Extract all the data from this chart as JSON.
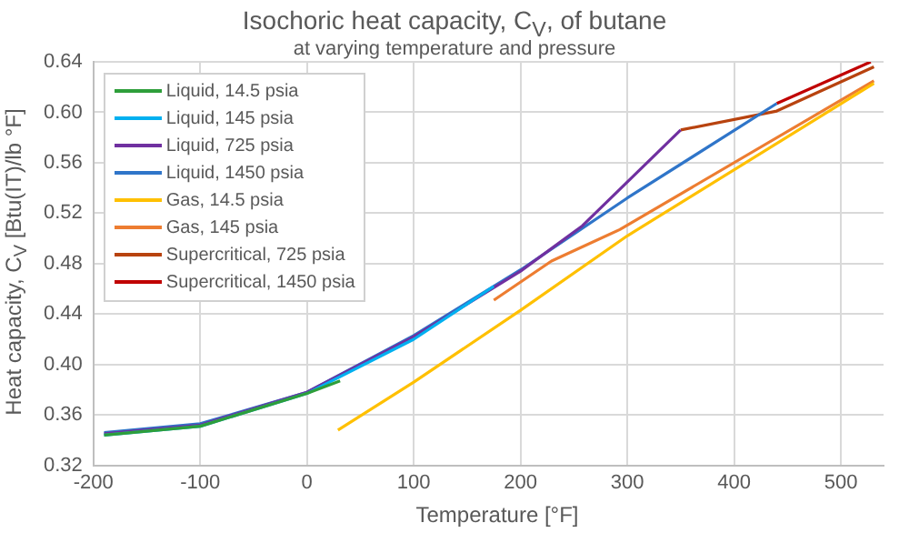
{
  "chart_data": {
    "type": "line",
    "title": "Isochoric heat capacity, C$_{V}$, of butane",
    "subtitle": "at varying temperature and pressure",
    "xlabel": "Temperature  [°F]",
    "ylabel": "Heat capacity, C$_{V}$  [Btu(IT)/lb °F]",
    "xlim": [
      -200,
      540
    ],
    "xticks": [
      -200,
      -100,
      0,
      100,
      200,
      300,
      400,
      500
    ],
    "ylim": [
      0.32,
      0.64
    ],
    "yticks": [
      0.32,
      0.36,
      {
        "value": 0.4,
        "label": "0.40"
      },
      0.44,
      0.48,
      0.52,
      0.56,
      {
        "value": 0.6,
        "label": "0.60"
      },
      0.64
    ],
    "grid": true,
    "legend": "top left",
    "marker": "none",
    "series": [
      {
        "name": "Liquid, 14.5 psia",
        "color": "#2e9e3a",
        "x": [
          -190,
          -100,
          0,
          31
        ],
        "values": [
          0.344,
          0.351,
          0.377,
          0.387
        ]
      },
      {
        "name": "Liquid, 145 psia",
        "color": "#00b0f0",
        "x": [
          -190,
          -100,
          0,
          100,
          175
        ],
        "values": [
          0.344,
          0.351,
          0.377,
          0.42,
          0.462
        ]
      },
      {
        "name": "Liquid, 725 psia",
        "color": "#7030a0",
        "x": [
          -190,
          -100,
          0,
          100,
          200,
          258,
          350
        ],
        "values": [
          0.345,
          0.352,
          0.378,
          0.422,
          0.474,
          0.51,
          0.586
        ]
      },
      {
        "name": "Liquid, 1450 psia",
        "color": "#2f75c9",
        "x": [
          -190,
          -100,
          0,
          100,
          200,
          300,
          440
        ],
        "values": [
          0.346,
          0.353,
          0.378,
          0.423,
          0.475,
          0.532,
          0.607
        ]
      },
      {
        "name": "Gas, 14.5 psia",
        "color": "#ffc000",
        "x": [
          29,
          100,
          200,
          300,
          531
        ],
        "values": [
          0.348,
          0.386,
          0.443,
          0.502,
          0.623
        ]
      },
      {
        "name": "Gas, 145 psia",
        "color": "#ed7d31",
        "x": [
          175,
          229,
          293,
          531
        ],
        "values": [
          0.451,
          0.482,
          0.507,
          0.625
        ]
      },
      {
        "name": "Supercritical, 725 psia",
        "color": "#b8430f",
        "x": [
          350,
          440,
          531
        ],
        "values": [
          0.586,
          0.601,
          0.636
        ]
      },
      {
        "name": "Supercritical, 1450 psia",
        "color": "#c00000",
        "x": [
          440,
          528
        ],
        "values": [
          0.607,
          0.64
        ]
      }
    ]
  }
}
